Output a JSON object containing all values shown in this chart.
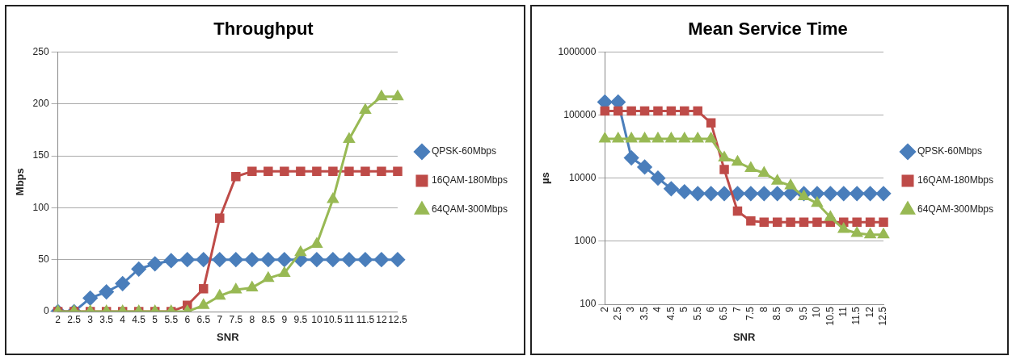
{
  "chart_data": [
    {
      "type": "line",
      "title": "Throughput",
      "xlabel": "SNR",
      "ylabel": "Mbps",
      "categories": [
        "2",
        "2.5",
        "3",
        "3.5",
        "4",
        "4.5",
        "5",
        "5.5",
        "6",
        "6.5",
        "7",
        "7.5",
        "8",
        "8.5",
        "9",
        "9.5",
        "10",
        "10.5",
        "11",
        "11.5",
        "12",
        "12.5"
      ],
      "ylim": [
        0,
        250
      ],
      "yticks": [
        0,
        50,
        100,
        150,
        200,
        250
      ],
      "grid": "y",
      "legend": "right",
      "line_style": "solid",
      "series": [
        {
          "name": "QPSK-60Mbps",
          "color": "#4a7ebb",
          "marker": "diamond",
          "values": [
            0,
            0,
            13,
            19,
            27,
            41,
            46,
            49,
            50,
            50,
            50,
            50,
            50,
            50,
            50,
            50,
            50,
            50,
            50,
            50,
            50,
            50
          ]
        },
        {
          "name": "16QAM-180Mbps",
          "color": "#be4b48",
          "marker": "square",
          "values": [
            0,
            0,
            0,
            0,
            0,
            0,
            0,
            0,
            6,
            22,
            90,
            130,
            135,
            135,
            135,
            135,
            135,
            135,
            135,
            135,
            135,
            135
          ]
        },
        {
          "name": "64QAM-300Mbps",
          "color": "#98b954",
          "marker": "triangle",
          "values": [
            0,
            0,
            0,
            0,
            0,
            0,
            0,
            0,
            0,
            6,
            15,
            21,
            23,
            32,
            37,
            57,
            65,
            108,
            166,
            194,
            207,
            207
          ]
        }
      ]
    },
    {
      "type": "line",
      "title": "Mean Service Time",
      "xlabel": "SNR",
      "ylabel": "µs",
      "categories": [
        "2",
        "2.5",
        "3",
        "3.5",
        "4",
        "4.5",
        "5",
        "5.5",
        "6",
        "6.5",
        "7",
        "7.5",
        "8",
        "8.5",
        "9",
        "9.5",
        "10",
        "10.5",
        "11",
        "11.5",
        "12",
        "12.5"
      ],
      "log": "y",
      "ylim": [
        100,
        1000000
      ],
      "yticks": [
        100,
        1000,
        10000,
        100000,
        1000000
      ],
      "grid": "y",
      "legend": "right",
      "line_style": "solid",
      "series": [
        {
          "name": "QPSK-60Mbps",
          "color": "#4a7ebb",
          "marker": "diamond",
          "values": [
            161000,
            161000,
            21000,
            15000,
            10000,
            6800,
            6100,
            5700,
            5700,
            5700,
            5700,
            5700,
            5700,
            5700,
            5700,
            5700,
            5700,
            5700,
            5700,
            5700,
            5700,
            5700
          ]
        },
        {
          "name": "16QAM-180Mbps",
          "color": "#be4b48",
          "marker": "square",
          "values": [
            116000,
            116000,
            116000,
            116000,
            116000,
            116000,
            116000,
            116000,
            75000,
            13700,
            3000,
            2100,
            2000,
            2000,
            2000,
            2000,
            2000,
            2000,
            2000,
            2000,
            2000,
            2000
          ]
        },
        {
          "name": "64QAM-300Mbps",
          "color": "#98b954",
          "marker": "triangle",
          "values": [
            42000,
            42000,
            42000,
            42000,
            42000,
            42000,
            42000,
            42000,
            42000,
            21000,
            18000,
            14300,
            12000,
            9000,
            7600,
            5100,
            4000,
            2400,
            1550,
            1340,
            1270,
            1270
          ]
        }
      ]
    }
  ]
}
